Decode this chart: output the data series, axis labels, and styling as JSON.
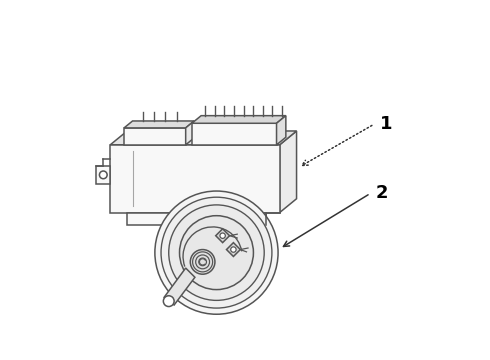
{
  "bg_color": "#ffffff",
  "line_color": "#555555",
  "label_color": "#000000",
  "label1": "1",
  "label2": "2",
  "lw": 1.1
}
